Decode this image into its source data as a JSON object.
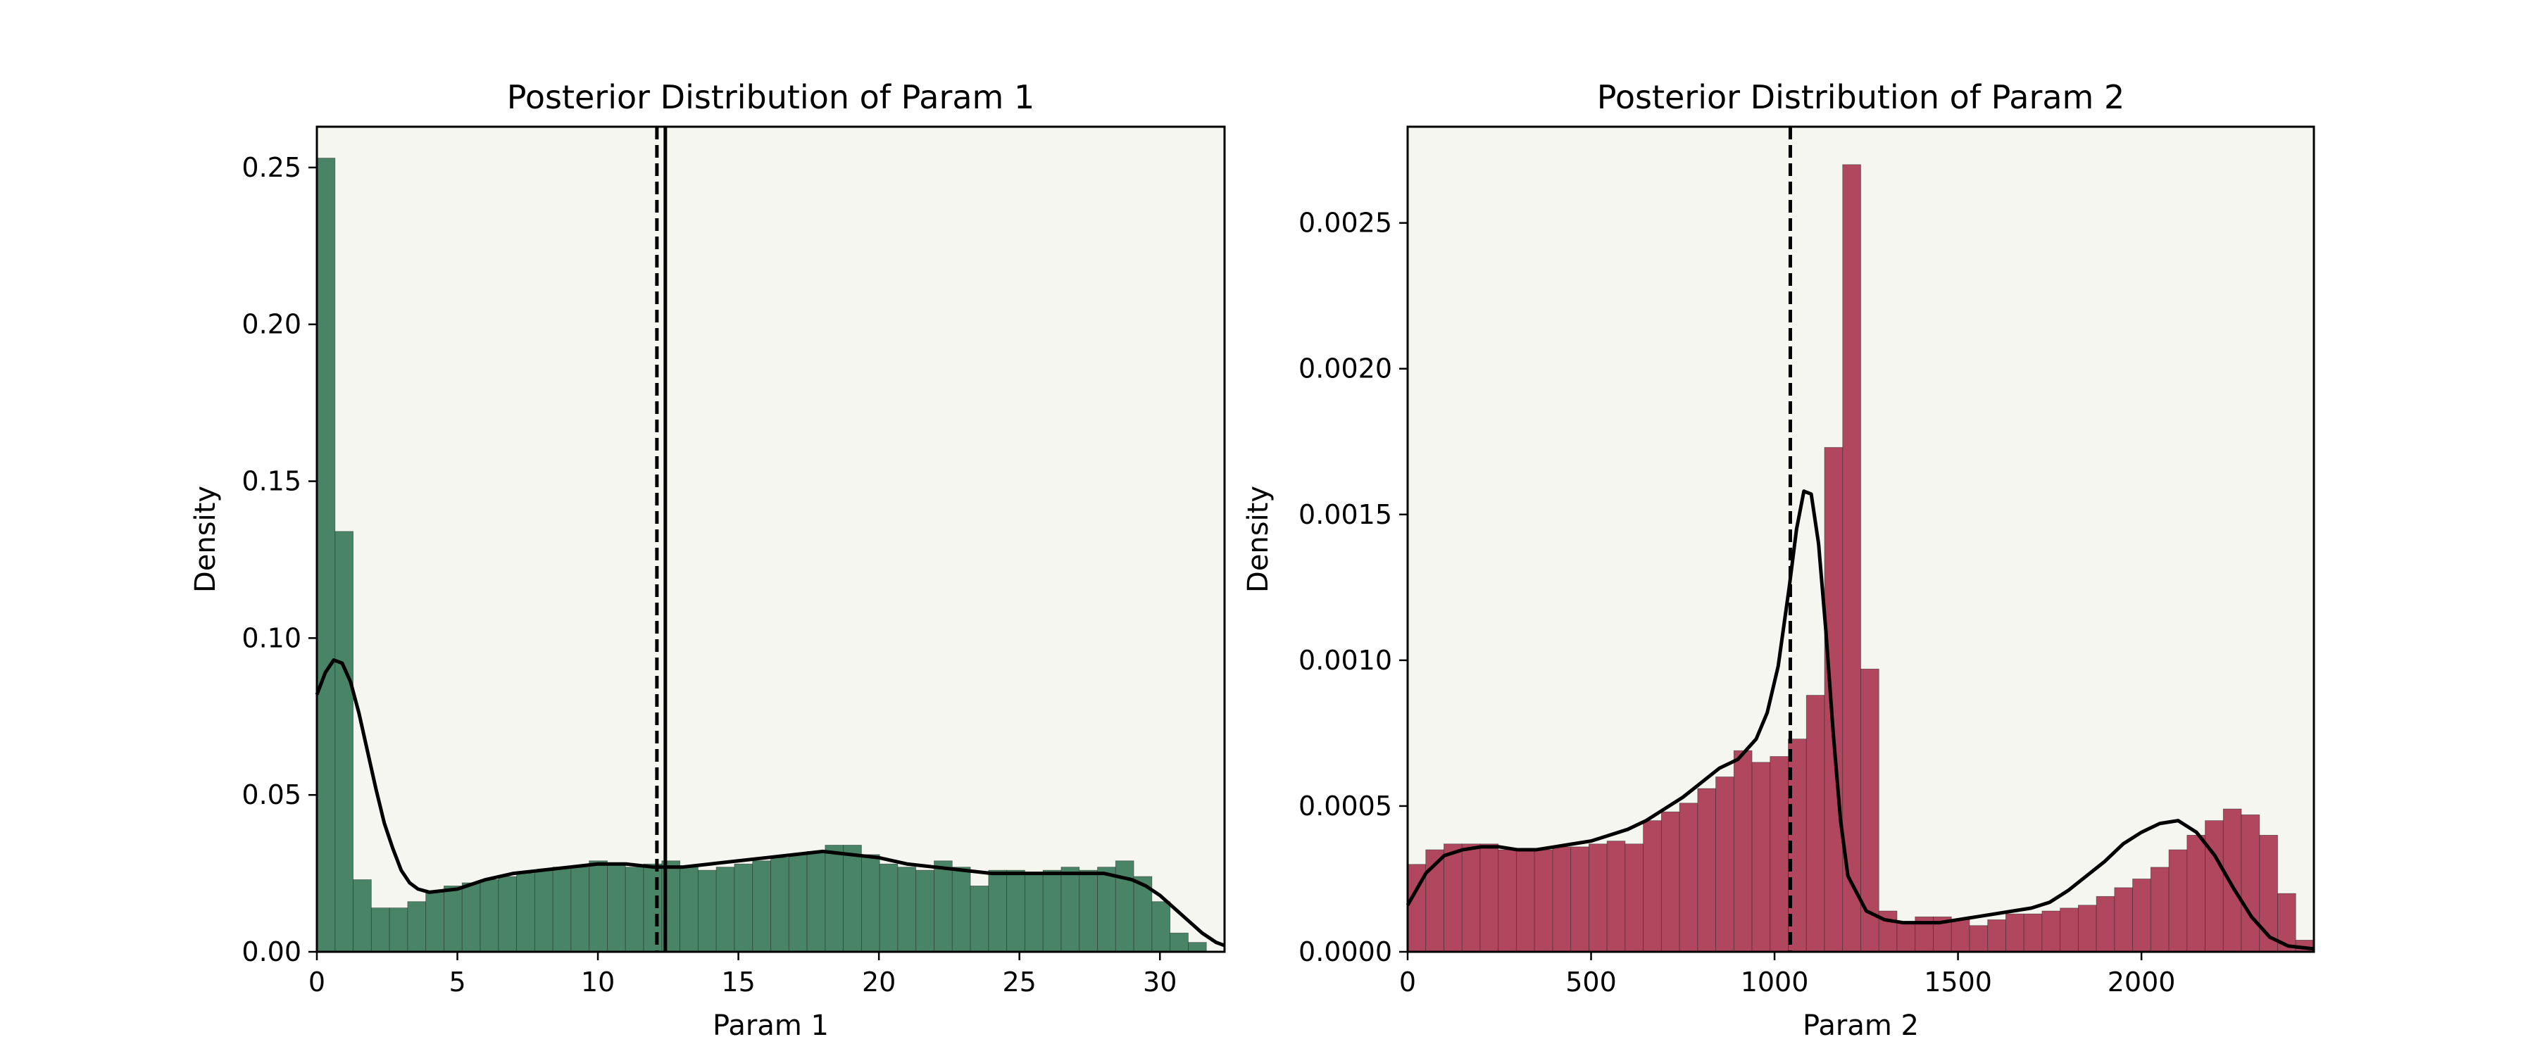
{
  "chart_data": [
    {
      "type": "bar",
      "title": "Posterior Distribution of Param 1",
      "xlabel": "Param 1",
      "ylabel": "Density",
      "xlim": [
        0,
        32.3
      ],
      "ylim": [
        0,
        0.263
      ],
      "grid": false,
      "bar_color": "#4a8467",
      "background_color": "#f5f6f0",
      "xticks": [
        0,
        5,
        10,
        15,
        20,
        25,
        30
      ],
      "xtick_labels": [
        "0",
        "5",
        "10",
        "15",
        "20",
        "25",
        "30"
      ],
      "yticks": [
        0,
        0.05,
        0.1,
        0.15,
        0.2,
        0.25
      ],
      "ytick_labels": [
        "0.00",
        "0.05",
        "0.10",
        "0.15",
        "0.20",
        "0.25"
      ],
      "bin_edges": [
        0,
        0.646,
        1.292,
        1.938,
        2.584,
        3.23,
        3.876,
        4.522,
        5.168,
        5.814,
        6.46,
        7.106,
        7.752,
        8.398,
        9.044,
        9.69,
        10.336,
        10.982,
        11.628,
        12.274,
        12.92,
        13.566,
        14.212,
        14.858,
        15.504,
        16.15,
        16.796,
        17.442,
        18.088,
        18.734,
        19.38,
        20.026,
        20.672,
        21.318,
        21.964,
        22.61,
        23.256,
        23.902,
        24.548,
        25.194,
        25.84,
        26.486,
        27.132,
        27.778,
        28.424,
        29.07,
        29.716,
        30.362,
        31.008,
        31.654,
        32.3
      ],
      "values": [
        0.253,
        0.134,
        0.023,
        0.014,
        0.014,
        0.016,
        0.019,
        0.021,
        0.022,
        0.023,
        0.024,
        0.025,
        0.026,
        0.027,
        0.027,
        0.029,
        0.028,
        0.027,
        0.028,
        0.029,
        0.027,
        0.026,
        0.027,
        0.028,
        0.029,
        0.03,
        0.031,
        0.032,
        0.034,
        0.034,
        0.031,
        0.028,
        0.027,
        0.026,
        0.029,
        0.027,
        0.021,
        0.026,
        0.026,
        0.025,
        0.026,
        0.027,
        0.026,
        0.027,
        0.029,
        0.024,
        0.016,
        0.006,
        0.003,
        0.0
      ],
      "kde": {
        "x": [
          0,
          0.3,
          0.6,
          0.9,
          1.2,
          1.5,
          1.8,
          2.1,
          2.4,
          2.7,
          3.0,
          3.3,
          3.6,
          4,
          5,
          6,
          7,
          8,
          9,
          10,
          11,
          12,
          13,
          14,
          15,
          16,
          17,
          18,
          19,
          20,
          21,
          22,
          23,
          24,
          25,
          26,
          27,
          28,
          28.5,
          29,
          29.5,
          30,
          30.5,
          31,
          31.5,
          32,
          32.3
        ],
        "y": [
          0.082,
          0.089,
          0.093,
          0.092,
          0.086,
          0.076,
          0.064,
          0.052,
          0.041,
          0.033,
          0.026,
          0.022,
          0.02,
          0.019,
          0.02,
          0.023,
          0.025,
          0.026,
          0.027,
          0.028,
          0.028,
          0.027,
          0.027,
          0.028,
          0.029,
          0.03,
          0.031,
          0.032,
          0.031,
          0.03,
          0.028,
          0.027,
          0.026,
          0.025,
          0.025,
          0.025,
          0.025,
          0.025,
          0.024,
          0.023,
          0.021,
          0.018,
          0.014,
          0.01,
          0.006,
          0.003,
          0.002
        ]
      },
      "vlines": [
        {
          "x": 12.1,
          "style": "dashed"
        },
        {
          "x": 12.4,
          "style": "solid"
        }
      ]
    },
    {
      "type": "bar",
      "title": "Posterior Distribution of Param 2",
      "xlabel": "Param 2",
      "ylabel": "Density",
      "xlim": [
        0,
        2470
      ],
      "ylim": [
        0,
        0.00283
      ],
      "grid": false,
      "bar_color": "#b1475f",
      "background_color": "#f5f6f0",
      "xticks": [
        0,
        500,
        1000,
        1500,
        2000
      ],
      "xtick_labels": [
        "0",
        "500",
        "1000",
        "1500",
        "2000"
      ],
      "yticks": [
        0,
        0.0005,
        0.001,
        0.0015,
        0.002,
        0.0025
      ],
      "ytick_labels": [
        "0.0000",
        "0.0005",
        "0.0010",
        "0.0015",
        "0.0020",
        "0.0025"
      ],
      "bin_edges": [
        0,
        49.4,
        98.8,
        148.2,
        197.6,
        247,
        296.4,
        345.8,
        395.2,
        444.6,
        494,
        543.4,
        592.8,
        642.2,
        691.6,
        741,
        790.4,
        839.8,
        889.2,
        938.6,
        988,
        1037.4,
        1086.8,
        1136.2,
        1185.6,
        1235,
        1284.4,
        1333.8,
        1383.2,
        1432.6,
        1482,
        1531.4,
        1580.8,
        1630.2,
        1679.6,
        1729,
        1778.4,
        1827.8,
        1877.2,
        1926.6,
        1976,
        2025.4,
        2074.8,
        2124.2,
        2173.6,
        2223,
        2272.4,
        2321.8,
        2371.2,
        2420.6,
        2470
      ],
      "values": [
        0.0003,
        0.00035,
        0.00037,
        0.00037,
        0.00037,
        0.00035,
        0.00035,
        0.00035,
        0.00036,
        0.00036,
        0.00037,
        0.00038,
        0.00037,
        0.00045,
        0.00048,
        0.00051,
        0.00056,
        0.0006,
        0.00069,
        0.00065,
        0.00067,
        0.00073,
        0.00088,
        0.00173,
        0.0027,
        0.00097,
        0.00014,
        0.0001,
        0.00012,
        0.00012,
        0.00011,
        9e-05,
        0.00011,
        0.00013,
        0.00013,
        0.00014,
        0.00015,
        0.00016,
        0.00019,
        0.00022,
        0.00025,
        0.00029,
        0.00035,
        0.0004,
        0.00045,
        0.00049,
        0.00047,
        0.0004,
        0.0002,
        4e-05
      ],
      "kde": {
        "x": [
          0,
          50,
          100,
          150,
          200,
          250,
          300,
          350,
          400,
          450,
          500,
          550,
          600,
          650,
          700,
          750,
          800,
          850,
          900,
          950,
          980,
          1010,
          1040,
          1060,
          1080,
          1100,
          1120,
          1140,
          1160,
          1180,
          1200,
          1250,
          1300,
          1350,
          1400,
          1450,
          1500,
          1550,
          1600,
          1650,
          1700,
          1750,
          1800,
          1850,
          1900,
          1950,
          2000,
          2050,
          2100,
          2150,
          2200,
          2250,
          2300,
          2350,
          2400,
          2470
        ],
        "y": [
          0.00016,
          0.00027,
          0.00033,
          0.00035,
          0.00036,
          0.00036,
          0.00035,
          0.00035,
          0.00036,
          0.00037,
          0.00038,
          0.0004,
          0.00042,
          0.00045,
          0.00049,
          0.00053,
          0.00058,
          0.00063,
          0.00066,
          0.00073,
          0.00082,
          0.00098,
          0.00125,
          0.00145,
          0.00158,
          0.00157,
          0.0014,
          0.0011,
          0.00075,
          0.00045,
          0.00026,
          0.00014,
          0.00011,
          0.0001,
          0.0001,
          0.0001,
          0.00011,
          0.00012,
          0.00013,
          0.00014,
          0.00015,
          0.00017,
          0.00021,
          0.00026,
          0.00031,
          0.00037,
          0.00041,
          0.00044,
          0.00045,
          0.00041,
          0.00033,
          0.00022,
          0.00012,
          5e-05,
          2e-05,
          1e-05
        ]
      },
      "vlines": [
        {
          "x": 1043,
          "style": "dashed"
        }
      ]
    }
  ]
}
